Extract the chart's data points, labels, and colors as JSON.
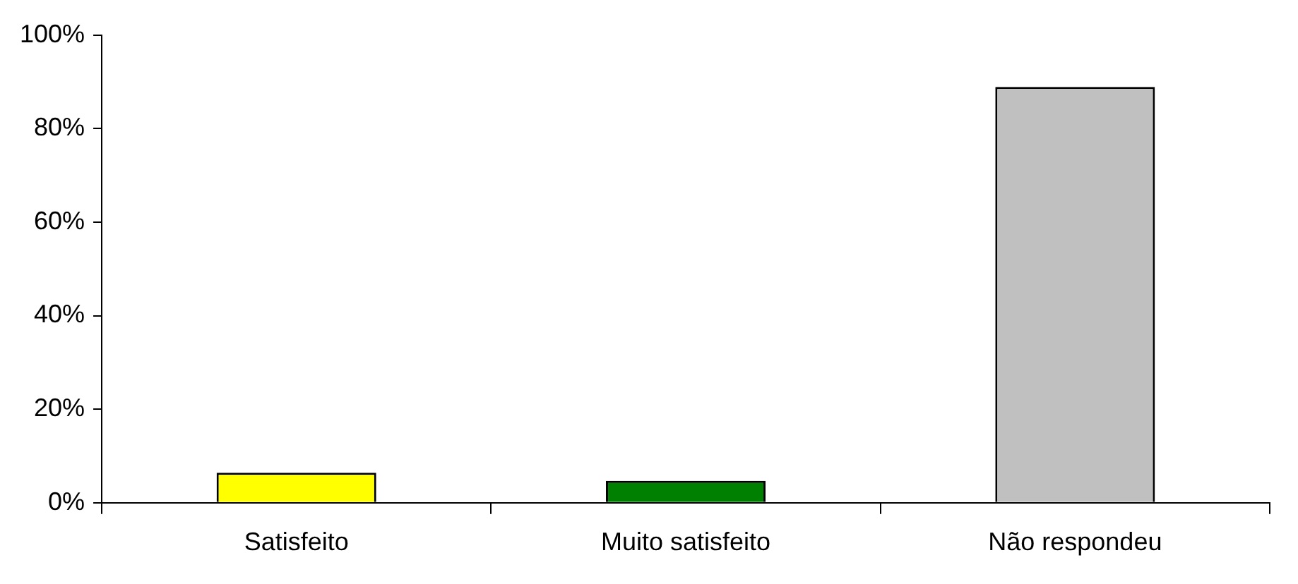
{
  "chart_data": {
    "type": "bar",
    "categories": [
      "Satisfeito",
      "Muito satisfeito",
      "Não respondeu"
    ],
    "values": [
      6.4,
      4.7,
      88.9
    ],
    "colors": [
      "#ffff00",
      "#008000",
      "#c0c0c0"
    ],
    "ylim": [
      0,
      100
    ],
    "yticks": [
      {
        "value": 0,
        "label": "0%"
      },
      {
        "value": 20,
        "label": "20%"
      },
      {
        "value": 40,
        "label": "40%"
      },
      {
        "value": 60,
        "label": "60%"
      },
      {
        "value": 80,
        "label": "80%"
      },
      {
        "value": 100,
        "label": "100%"
      }
    ],
    "grid": false,
    "legend": false
  }
}
